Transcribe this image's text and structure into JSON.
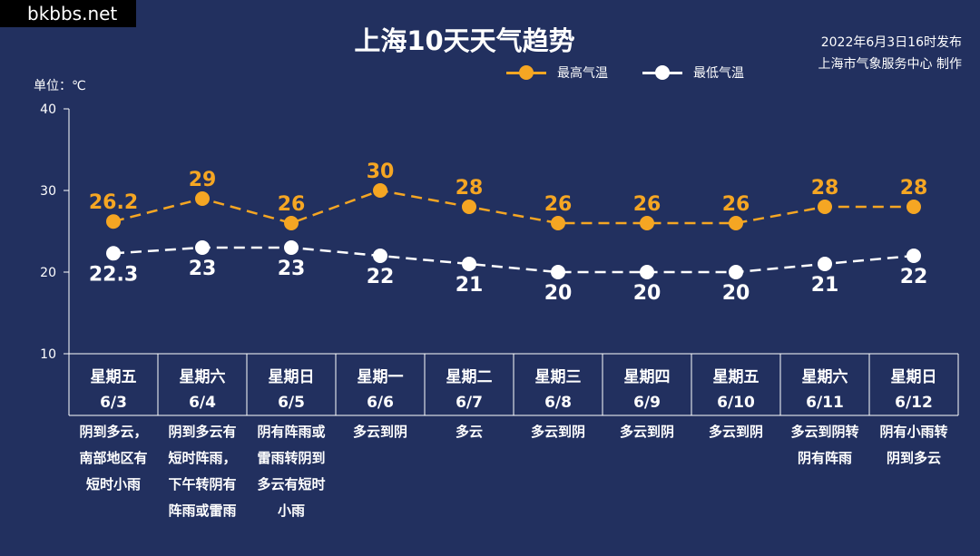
{
  "watermark": "bkbbs.net",
  "title": "上海10天天气趋势",
  "publisher": {
    "line1": "2022年6月3日16时发布",
    "line2": "上海市气象服务中心 制作"
  },
  "unit_label": "单位：℃",
  "legend": {
    "high": "最高气温",
    "low": "最低气温"
  },
  "colors": {
    "high": "#f5a623",
    "low": "#ffffff",
    "background": "#22305f",
    "axis": "#ffffff"
  },
  "chart_data": {
    "type": "line",
    "ylim": [
      10,
      40
    ],
    "yticks": [
      "10",
      "20",
      "30",
      "40"
    ],
    "categories": [
      "6/3",
      "6/4",
      "6/5",
      "6/6",
      "6/7",
      "6/8",
      "6/9",
      "6/10",
      "6/11",
      "6/12"
    ],
    "weekdays": [
      "星期五",
      "星期六",
      "星期日",
      "星期一",
      "星期二",
      "星期三",
      "星期四",
      "星期五",
      "星期六",
      "星期日"
    ],
    "series": [
      {
        "name": "最高气温",
        "values": [
          26.2,
          29,
          26,
          30,
          28,
          26,
          26,
          26,
          28,
          28
        ],
        "labels": [
          "26.2",
          "29",
          "26",
          "30",
          "28",
          "26",
          "26",
          "26",
          "28",
          "28"
        ]
      },
      {
        "name": "最低气温",
        "values": [
          22.3,
          23,
          23,
          22,
          21,
          20,
          20,
          20,
          21,
          22
        ],
        "labels": [
          "22.3",
          "23",
          "23",
          "22",
          "21",
          "20",
          "20",
          "20",
          "21",
          "22"
        ]
      }
    ],
    "descriptions": [
      [
        "阴到多云，",
        "南部地区有",
        "短时小雨"
      ],
      [
        "阴到多云有",
        "短时阵雨，",
        "下午转阴有",
        "阵雨或雷雨"
      ],
      [
        "阴有阵雨或",
        "雷雨转阴到",
        "多云有短时",
        "小雨"
      ],
      [
        "多云到阴"
      ],
      [
        "多云"
      ],
      [
        "多云到阴"
      ],
      [
        "多云到阴"
      ],
      [
        "多云到阴"
      ],
      [
        "多云到阴转",
        "阴有阵雨"
      ],
      [
        "阴有小雨转",
        "阴到多云"
      ]
    ]
  }
}
